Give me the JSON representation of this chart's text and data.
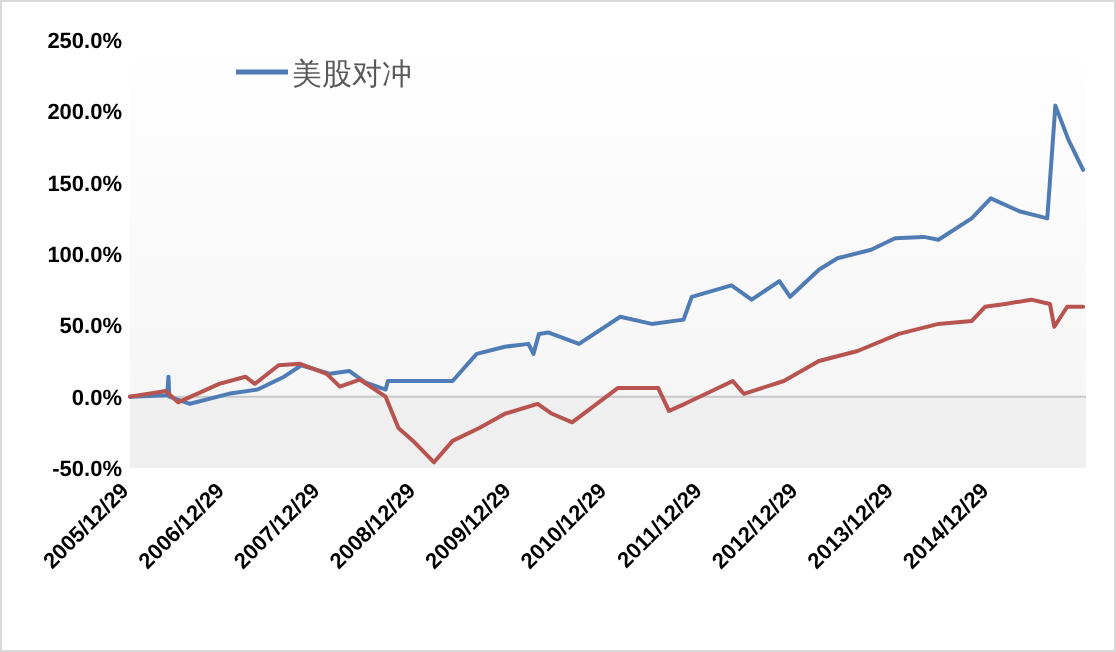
{
  "chart_data": {
    "type": "line",
    "legend": "top",
    "grid": false,
    "line_style": "solid",
    "marker": "none",
    "xlim": [
      "2005-12-29",
      "2015-12-31"
    ],
    "xticks": [
      {
        "value": "2005-12-29",
        "label": "2005/12/29"
      },
      {
        "value": "2006-12-29",
        "label": "2006/12/29"
      },
      {
        "value": "2007-12-29",
        "label": "2007/12/29"
      },
      {
        "value": "2008-12-29",
        "label": "2008/12/29"
      },
      {
        "value": "2009-12-29",
        "label": "2009/12/29"
      },
      {
        "value": "2010-12-29",
        "label": "2010/12/29"
      },
      {
        "value": "2011-12-29",
        "label": "2011/12/29"
      },
      {
        "value": "2012-12-29",
        "label": "2012/12/29"
      },
      {
        "value": "2013-12-29",
        "label": "2013/12/29"
      },
      {
        "value": "2014-12-29",
        "label": "2014/12/29"
      }
    ],
    "ylim": [
      -50,
      250
    ],
    "yticks": [
      {
        "value": -50,
        "label": "-50.0%"
      },
      {
        "value": 0,
        "label": "0.0%"
      },
      {
        "value": 50,
        "label": "50.0%"
      },
      {
        "value": 100,
        "label": "100.0%"
      },
      {
        "value": 150,
        "label": "150.0%"
      },
      {
        "value": 200,
        "label": "200.0%"
      },
      {
        "value": 250,
        "label": "250.0%"
      }
    ],
    "bands": [
      {
        "axis": "y",
        "from": -50,
        "to": 0,
        "color": "#efefef"
      }
    ],
    "ref_lines": [
      {
        "axis": "y",
        "value": 0,
        "color": "#c8c8c8"
      }
    ],
    "series": [
      {
        "name": "美股对冲",
        "color": "#4f7cb5",
        "x": [
          "2005-12-29",
          "2006-05-20",
          "2006-05-25",
          "2006-05-28",
          "2006-08-15",
          "2007-01-10",
          "2007-05-01",
          "2007-08-10",
          "2007-10-15",
          "2008-02-01",
          "2008-04-15",
          "2008-06-15",
          "2008-09-01",
          "2008-09-10",
          "2009-05-15",
          "2009-08-15",
          "2009-12-01",
          "2010-03-01",
          "2010-03-20",
          "2010-04-10",
          "2010-05-15",
          "2010-09-10",
          "2011-02-15",
          "2011-06-15",
          "2011-10-15",
          "2011-11-15",
          "2012-04-15",
          "2012-07-01",
          "2012-10-15",
          "2012-11-25",
          "2013-03-15",
          "2013-05-25",
          "2013-10-01",
          "2013-12-31",
          "2014-04-20",
          "2014-06-15",
          "2014-10-20",
          "2015-01-01",
          "2015-04-20",
          "2015-08-05",
          "2015-09-05",
          "2015-10-25",
          "2015-12-20"
        ],
        "values": [
          0,
          1,
          14,
          0,
          -5,
          2,
          5,
          14,
          22,
          16,
          18,
          10,
          5,
          11,
          11,
          30,
          35,
          37,
          30,
          44,
          45,
          37,
          56,
          51,
          54,
          70,
          78,
          68,
          81,
          70,
          89,
          97,
          103,
          111,
          112,
          110,
          125,
          139,
          130,
          125,
          204,
          180,
          159
        ]
      },
      {
        "color": "#b85450",
        "x": [
          "2005-12-29",
          "2006-05-15",
          "2006-07-01",
          "2006-12-05",
          "2007-03-15",
          "2007-04-20",
          "2007-07-20",
          "2007-10-10",
          "2008-01-20",
          "2008-03-10",
          "2008-05-25",
          "2008-09-01",
          "2008-10-20",
          "2008-12-15",
          "2009-03-05",
          "2009-05-15",
          "2009-08-25",
          "2009-12-01",
          "2010-04-05",
          "2010-05-30",
          "2010-08-15",
          "2011-02-05",
          "2011-07-10",
          "2011-08-20",
          "2011-10-20",
          "2012-04-20",
          "2012-06-01",
          "2012-11-01",
          "2013-03-15",
          "2013-08-10",
          "2014-01-15",
          "2014-06-15",
          "2014-10-20",
          "2014-12-10",
          "2015-02-25",
          "2015-06-05",
          "2015-08-15",
          "2015-09-01",
          "2015-10-20",
          "2015-12-20"
        ],
        "values": [
          0,
          4,
          -4,
          9,
          14,
          9,
          22,
          23,
          16,
          7,
          12,
          0,
          -22,
          -31,
          -46,
          -31,
          -22,
          -12,
          -5,
          -12,
          -18,
          6,
          6,
          -10,
          -5,
          11,
          2,
          11,
          25,
          32,
          44,
          51,
          53,
          63,
          65,
          68,
          65,
          49,
          63,
          63
        ]
      }
    ]
  }
}
